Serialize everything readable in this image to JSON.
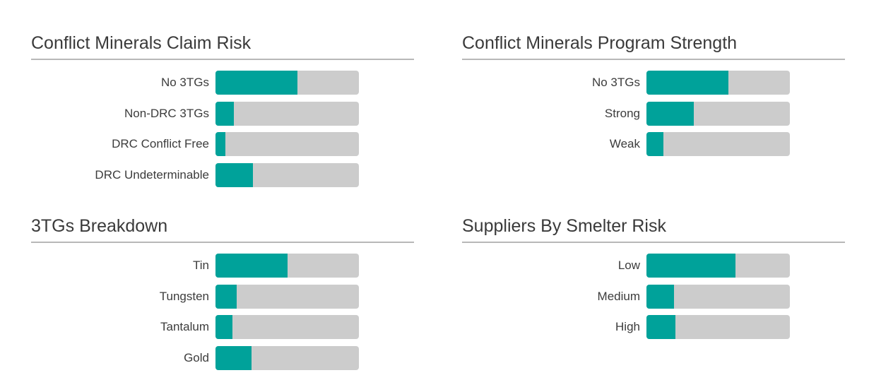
{
  "colors": {
    "fill": "#00a29a",
    "track": "#cccccc"
  },
  "chart_data": [
    {
      "type": "bar",
      "orientation": "horizontal",
      "title": "Conflict Minerals Claim Risk",
      "categories": [
        "No 3TGs",
        "Non-DRC 3TGs",
        "DRC Conflict Free",
        "DRC Undeterminable"
      ],
      "values": [
        0.57,
        0.13,
        0.07,
        0.26
      ],
      "ylim": [
        0,
        1
      ],
      "grid": false
    },
    {
      "type": "bar",
      "orientation": "horizontal",
      "title": "Conflict Minerals Program Strength",
      "categories": [
        "No 3TGs",
        "Strong",
        "Weak"
      ],
      "values": [
        0.57,
        0.33,
        0.12
      ],
      "ylim": [
        0,
        1
      ],
      "grid": false
    },
    {
      "type": "bar",
      "orientation": "horizontal",
      "title": "3TGs Breakdown",
      "categories": [
        "Tin",
        "Tungsten",
        "Tantalum",
        "Gold"
      ],
      "values": [
        0.5,
        0.15,
        0.12,
        0.25
      ],
      "ylim": [
        0,
        1
      ],
      "grid": false
    },
    {
      "type": "bar",
      "orientation": "horizontal",
      "title": "Suppliers By Smelter Risk",
      "categories": [
        "Low",
        "Medium",
        "High"
      ],
      "values": [
        0.62,
        0.19,
        0.2
      ],
      "ylim": [
        0,
        1
      ],
      "grid": false
    }
  ]
}
